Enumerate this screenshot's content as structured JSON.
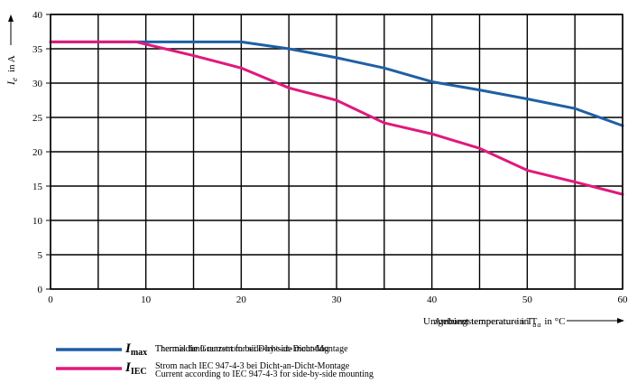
{
  "chart_data": {
    "type": "line",
    "xlabel_de": "Umgebungstemperatur in T",
    "xlabel_en": "Ambient temperature in T",
    "xlabel_sub": "a",
    "xlabel_unit": "in °C",
    "ylabel_sym": "I",
    "ylabel_sub": "e",
    "ylabel_unit": "in A",
    "xlim": [
      0,
      60
    ],
    "ylim": [
      0,
      40
    ],
    "xticks": [
      0,
      10,
      20,
      30,
      40,
      50,
      60
    ],
    "yticks": [
      0,
      5,
      10,
      15,
      20,
      25,
      30,
      35,
      40
    ],
    "grid": true,
    "series": [
      {
        "name": "I max",
        "symbol": "I",
        "sub": "max",
        "desc_de": "Thermische Grenzstrom bei Dicht-an-Dicht-Montage",
        "desc_en": "Thermal limit current for side-by-side mounting",
        "color": "#1f5fa6",
        "x": [
          0,
          5,
          10,
          15,
          20,
          25,
          30,
          35,
          40,
          45,
          50,
          55,
          60
        ],
        "y": [
          36,
          36,
          36,
          36,
          36,
          35,
          33.7,
          32.2,
          30.2,
          29,
          27.7,
          26.3,
          23.8
        ]
      },
      {
        "name": "I IEC",
        "symbol": "I",
        "sub": "IEC",
        "desc_de": "Strom nach IEC 947-4-3 bei Dicht-an-Dicht-Montage",
        "desc_en": "Current according to IEC 947-4-3 for side-by-side mounting",
        "color": "#e0197d",
        "x": [
          0,
          5,
          9,
          12,
          15,
          20,
          25,
          30,
          35,
          40,
          45,
          50,
          55,
          60
        ],
        "y": [
          36,
          36,
          36,
          35,
          34,
          32.2,
          29.3,
          27.5,
          24.2,
          22.6,
          20.5,
          17.3,
          15.6,
          13.8
        ]
      }
    ]
  }
}
